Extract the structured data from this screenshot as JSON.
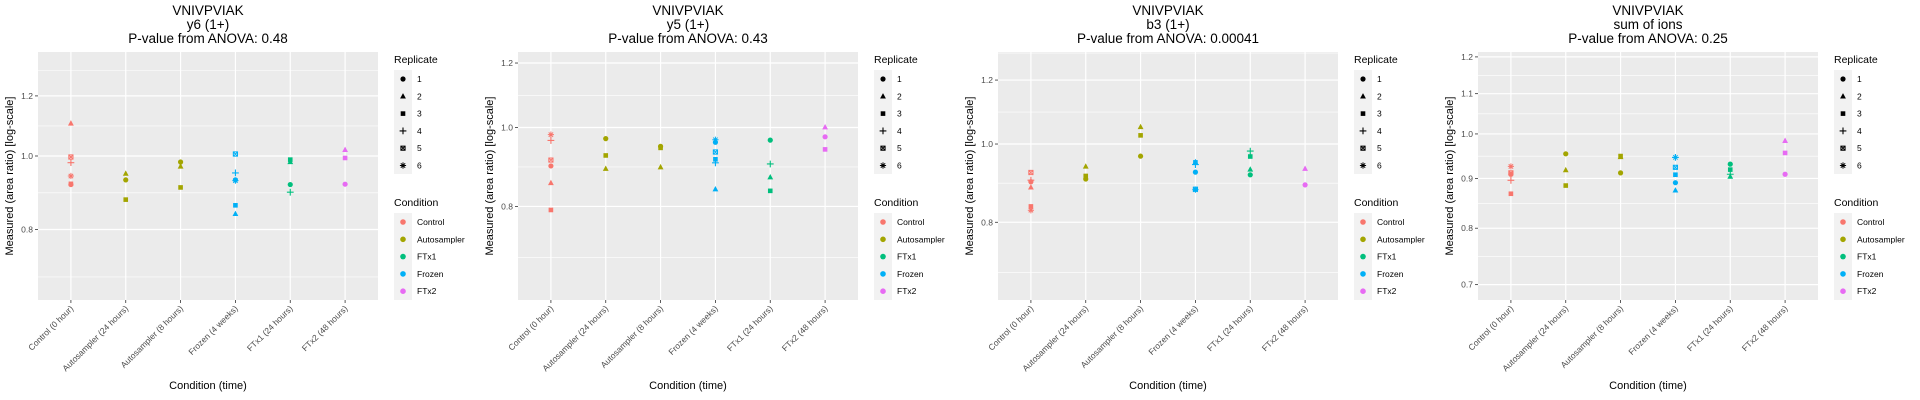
{
  "legend": {
    "replicate_title": "Replicate",
    "replicates": [
      "1",
      "2",
      "3",
      "4",
      "5",
      "6"
    ],
    "condition_title": "Condition",
    "conditions": [
      {
        "name": "Control",
        "color": "#F8766D"
      },
      {
        "name": "Autosampler",
        "color": "#A3A500"
      },
      {
        "name": "FTx1",
        "color": "#00BF7D"
      },
      {
        "name": "Frozen",
        "color": "#00B0F6"
      },
      {
        "name": "FTx2",
        "color": "#E76BF3"
      }
    ]
  },
  "chart_data": [
    {
      "type": "scatter",
      "title": [
        "VNIVPVIAK",
        "y6 (1+)",
        "P-value from ANOVA: 0.48"
      ],
      "xlabel": "Condition (time)",
      "ylabel": "Measured (area ratio) [log-scale]",
      "scale": "log",
      "categories": [
        "Control (0 hour)",
        "Autosampler (24 hours)",
        "Autosampler (8 hours)",
        "Frozen (4 weeks)",
        "FTx1 (24 hours)",
        "FTx2 (48 hours)"
      ],
      "category_condition": [
        "Control",
        "Autosampler",
        "Autosampler",
        "Frozen",
        "FTx1",
        "FTx2"
      ],
      "yticks": [
        0.8,
        1.0,
        1.2
      ],
      "ytick_labels": [
        "0.8",
        "1.0",
        "1.2"
      ],
      "ylim": [
        0.646,
        1.371
      ],
      "points": [
        [
          0,
          "2",
          1.104
        ],
        [
          0,
          "5",
          0.997
        ],
        [
          0,
          "4",
          0.98
        ],
        [
          0,
          "6",
          0.941
        ],
        [
          0,
          "1",
          0.917
        ],
        [
          0,
          "3",
          0.919
        ],
        [
          1,
          "2",
          0.948
        ],
        [
          1,
          "1",
          0.93
        ],
        [
          1,
          "3",
          0.876
        ],
        [
          2,
          "1",
          0.982
        ],
        [
          2,
          "2",
          0.969
        ],
        [
          2,
          "3",
          0.909
        ],
        [
          3,
          "5",
          1.006
        ],
        [
          3,
          "4",
          0.95
        ],
        [
          3,
          "1",
          0.93
        ],
        [
          3,
          "6",
          0.928
        ],
        [
          3,
          "3",
          0.861
        ],
        [
          3,
          "2",
          0.839
        ],
        [
          4,
          "3",
          0.989
        ],
        [
          4,
          "2",
          0.982
        ],
        [
          4,
          "1",
          0.917
        ],
        [
          4,
          "4",
          0.896
        ],
        [
          5,
          "2",
          1.019
        ],
        [
          5,
          "3",
          0.994
        ],
        [
          5,
          "1",
          0.918
        ]
      ]
    },
    {
      "type": "scatter",
      "title": [
        "VNIVPVIAK",
        "y5 (1+)",
        "P-value from ANOVA: 0.43"
      ],
      "xlabel": "Condition (time)",
      "ylabel": "Measured (area ratio) [log-scale]",
      "scale": "log",
      "categories": [
        "Control (0 hour)",
        "Autosampler (24 hours)",
        "Autosampler (8 hours)",
        "Frozen (4 weeks)",
        "FTx1 (24 hours)",
        "FTx2 (48 hours)"
      ],
      "category_condition": [
        "Control",
        "Autosampler",
        "Autosampler",
        "Frozen",
        "FTx1",
        "FTx2"
      ],
      "yticks": [
        0.8,
        1.0,
        1.2
      ],
      "ytick_labels": [
        "0.8",
        "1.0",
        "1.2"
      ],
      "ylim": [
        0.614,
        1.238
      ],
      "points": [
        [
          0,
          "6",
          0.98
        ],
        [
          0,
          "4",
          0.964
        ],
        [
          0,
          "5",
          0.912
        ],
        [
          0,
          "1",
          0.897
        ],
        [
          0,
          "2",
          0.855
        ],
        [
          0,
          "3",
          0.792
        ],
        [
          1,
          "1",
          0.969
        ],
        [
          1,
          "3",
          0.924
        ],
        [
          1,
          "2",
          0.89
        ],
        [
          2,
          "1",
          0.948
        ],
        [
          2,
          "3",
          0.944
        ],
        [
          2,
          "2",
          0.894
        ],
        [
          3,
          "6",
          0.966
        ],
        [
          3,
          "1",
          0.959
        ],
        [
          3,
          "5",
          0.933
        ],
        [
          3,
          "3",
          0.914
        ],
        [
          3,
          "4",
          0.905
        ],
        [
          3,
          "2",
          0.84
        ],
        [
          4,
          "1",
          0.965
        ],
        [
          4,
          "4",
          0.902
        ],
        [
          4,
          "2",
          0.869
        ],
        [
          4,
          "3",
          0.836
        ],
        [
          5,
          "2",
          1.001
        ],
        [
          5,
          "1",
          0.974
        ],
        [
          5,
          "3",
          0.94
        ]
      ]
    },
    {
      "type": "scatter",
      "title": [
        "VNIVPVIAK",
        "b3 (1+)",
        "P-value from ANOVA: 0.00041"
      ],
      "xlabel": "Condition (time)",
      "ylabel": "Measured (area ratio) [log-scale]",
      "scale": "log",
      "categories": [
        "Control (0 hour)",
        "Autosampler (24 hours)",
        "Autosampler (8 hours)",
        "Frozen (4 weeks)",
        "FTx1 (24 hours)",
        "FTx2 (48 hours)"
      ],
      "category_condition": [
        "Control",
        "Autosampler",
        "Autosampler",
        "Frozen",
        "FTx1",
        "FTx2"
      ],
      "yticks": [
        0.8,
        1.0,
        1.2
      ],
      "ytick_labels": [
        "0.8",
        "1.0",
        "1.2"
      ],
      "ylim": [
        0.641,
        1.3
      ],
      "points": [
        [
          0,
          "5",
          0.922
        ],
        [
          0,
          "4",
          0.902
        ],
        [
          0,
          "1",
          0.898
        ],
        [
          0,
          "2",
          0.884
        ],
        [
          0,
          "3",
          0.837
        ],
        [
          0,
          "6",
          0.828
        ],
        [
          1,
          "2",
          0.938
        ],
        [
          1,
          "3",
          0.913
        ],
        [
          1,
          "1",
          0.905
        ],
        [
          2,
          "2",
          1.05
        ],
        [
          2,
          "3",
          1.025
        ],
        [
          2,
          "1",
          0.966
        ],
        [
          3,
          "3",
          0.949
        ],
        [
          3,
          "4",
          0.943
        ],
        [
          3,
          "1",
          0.923
        ],
        [
          3,
          "5",
          0.879
        ],
        [
          3,
          "6",
          0.878
        ],
        [
          3,
          "2",
          0.95
        ],
        [
          4,
          "4",
          0.98
        ],
        [
          4,
          "3",
          0.965
        ],
        [
          4,
          "2",
          0.93
        ],
        [
          4,
          "1",
          0.916
        ],
        [
          5,
          "2",
          0.932
        ],
        [
          5,
          "1",
          0.89
        ]
      ]
    },
    {
      "type": "scatter",
      "title": [
        "VNIVPVIAK",
        "sum of ions",
        "P-value from ANOVA: 0.25"
      ],
      "xlabel": "Condition (time)",
      "ylabel": "Measured (area ratio) [log-scale]",
      "scale": "log",
      "categories": [
        "Control (0 hour)",
        "Autosampler (24 hours)",
        "Autosampler (8 hours)",
        "Frozen (4 weeks)",
        "FTx1 (24 hours)",
        "FTx2 (48 hours)"
      ],
      "category_condition": [
        "Control",
        "Autosampler",
        "Autosampler",
        "Frozen",
        "FTx1",
        "FTx2"
      ],
      "yticks": [
        0.7,
        0.8,
        0.9,
        1.0,
        1.1,
        1.2
      ],
      "ytick_labels": [
        "0.7",
        "0.8",
        "0.9",
        "1.0",
        "1.1",
        "1.2"
      ],
      "ylim": [
        0.675,
        1.214
      ],
      "points": [
        [
          0,
          "6",
          0.926
        ],
        [
          0,
          "5",
          0.912
        ],
        [
          0,
          "1",
          0.909
        ],
        [
          0,
          "4",
          0.896
        ],
        [
          0,
          "3",
          0.868
        ],
        [
          1,
          "1",
          0.954
        ],
        [
          1,
          "2",
          0.918
        ],
        [
          1,
          "3",
          0.885
        ],
        [
          2,
          "3",
          0.949
        ],
        [
          2,
          "2",
          0.947
        ],
        [
          2,
          "1",
          0.912
        ],
        [
          3,
          "6",
          0.946
        ],
        [
          3,
          "4",
          0.946
        ],
        [
          3,
          "5",
          0.924
        ],
        [
          3,
          "3",
          0.908
        ],
        [
          3,
          "1",
          0.891
        ],
        [
          3,
          "2",
          0.875
        ],
        [
          4,
          "1",
          0.931
        ],
        [
          4,
          "3",
          0.919
        ],
        [
          4,
          "4",
          0.909
        ],
        [
          4,
          "2",
          0.904
        ],
        [
          5,
          "2",
          0.984
        ],
        [
          5,
          "3",
          0.956
        ],
        [
          5,
          "1",
          0.909
        ]
      ]
    }
  ]
}
